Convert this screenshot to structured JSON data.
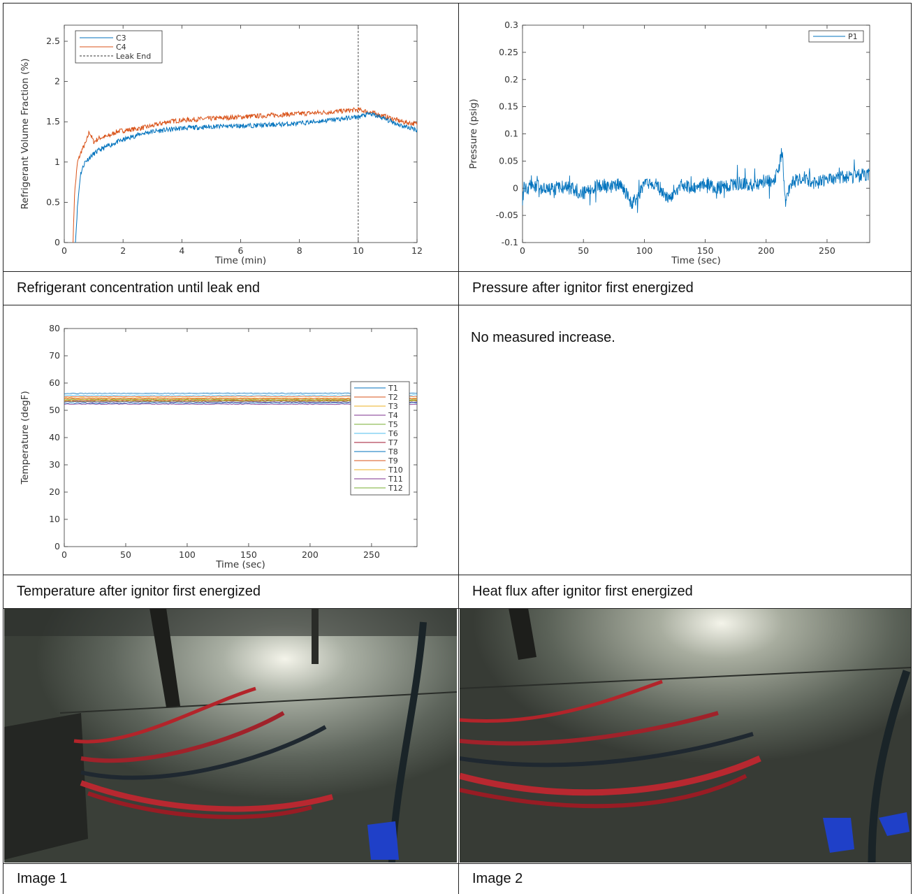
{
  "captions": {
    "c1": "Refrigerant concentration until leak end",
    "c2": "Pressure after ignitor first energized",
    "c3": "Temperature after ignitor first energized",
    "c4": "Heat flux after ignitor first energized",
    "c5": "Image 1",
    "c6": "Image 2"
  },
  "heat_flux_text": "No  measured increase.",
  "chart_data": [
    {
      "type": "line",
      "xlabel": "Time (min)",
      "ylabel": "Refrigerant Volume Fraction (%)",
      "xlim": [
        0,
        12
      ],
      "ylim": [
        0,
        2.7
      ],
      "xticks": [
        "0",
        "2",
        "4",
        "6",
        "8",
        "10",
        "12"
      ],
      "yticks": [
        "0",
        "0.5",
        "1",
        "1.5",
        "2",
        "2.5"
      ],
      "legend_position": "top-left",
      "colors": {
        "C3": "#0072bd",
        "C4": "#d95319",
        "Leak End": "#333333"
      },
      "series": [
        {
          "name": "C3",
          "x": [
            0.38,
            0.45,
            0.55,
            0.7,
            0.85,
            1.0,
            1.2,
            1.5,
            1.8,
            2.2,
            2.6,
            3.0,
            3.5,
            4,
            5,
            6,
            7,
            8,
            9,
            10,
            10.4,
            10.8,
            11.5,
            12
          ],
          "y": [
            0,
            0.45,
            0.85,
            1.0,
            1.05,
            1.1,
            1.15,
            1.2,
            1.25,
            1.3,
            1.35,
            1.38,
            1.4,
            1.42,
            1.44,
            1.45,
            1.46,
            1.48,
            1.52,
            1.56,
            1.6,
            1.55,
            1.45,
            1.4
          ]
        },
        {
          "name": "C4",
          "x": [
            0.3,
            0.35,
            0.45,
            0.6,
            0.75,
            0.85,
            1.0,
            1.2,
            1.5,
            1.8,
            2.2,
            2.6,
            3.0,
            3.5,
            4,
            5,
            6,
            7,
            8,
            9,
            10,
            10.4,
            10.8,
            11.5,
            12
          ],
          "y": [
            0,
            0.6,
            1.0,
            1.15,
            1.25,
            1.38,
            1.25,
            1.3,
            1.32,
            1.38,
            1.4,
            1.42,
            1.45,
            1.5,
            1.52,
            1.54,
            1.56,
            1.58,
            1.6,
            1.62,
            1.65,
            1.62,
            1.58,
            1.5,
            1.47
          ]
        },
        {
          "name": "Leak End",
          "x": [
            10,
            10
          ],
          "y": [
            0,
            2.7
          ]
        }
      ]
    },
    {
      "type": "line",
      "xlabel": "Time (sec)",
      "ylabel": "Pressure (psig)",
      "xlim": [
        0,
        285
      ],
      "ylim": [
        -0.1,
        0.3
      ],
      "xticks": [
        "0",
        "50",
        "100",
        "150",
        "200",
        "250"
      ],
      "yticks": [
        "-0.1",
        "-0.05",
        "0",
        "0.05",
        "0.1",
        "0.15",
        "0.2",
        "0.25",
        "0.3"
      ],
      "legend_position": "top-right",
      "colors": {
        "P1": "#0072bd"
      },
      "series": [
        {
          "name": "P1",
          "x": [
            0,
            10,
            20,
            30,
            40,
            50,
            60,
            70,
            80,
            90,
            100,
            110,
            120,
            130,
            140,
            150,
            160,
            170,
            180,
            190,
            200,
            205,
            210,
            213,
            216,
            220,
            230,
            240,
            250,
            260,
            270,
            280,
            285
          ],
          "y": [
            0,
            0.005,
            -0.005,
            0.002,
            0.0,
            -0.01,
            0.005,
            0.0,
            0.01,
            -0.03,
            0.005,
            0.01,
            -0.02,
            0.005,
            0.0,
            0.01,
            0.0,
            0.005,
            0.01,
            0.005,
            0.015,
            0.01,
            0.03,
            0.07,
            -0.03,
            0.01,
            0.02,
            0.01,
            0.015,
            0.02,
            0.02,
            0.025,
            0.025
          ]
        }
      ]
    },
    {
      "type": "line",
      "xlabel": "Time (sec)",
      "ylabel": "Temperature (degF)",
      "xlim": [
        0,
        287
      ],
      "ylim": [
        0,
        80
      ],
      "xticks": [
        "0",
        "50",
        "100",
        "150",
        "200",
        "250"
      ],
      "yticks": [
        "0",
        "10",
        "20",
        "30",
        "40",
        "50",
        "60",
        "70",
        "80"
      ],
      "legend_position": "right",
      "x": [
        0,
        287
      ],
      "series": [
        {
          "name": "T1",
          "values": [
            56.2,
            56.3
          ],
          "color": "#0072bd"
        },
        {
          "name": "T2",
          "values": [
            55.0,
            55.1
          ],
          "color": "#d95319"
        },
        {
          "name": "T3",
          "values": [
            54.6,
            54.4
          ],
          "color": "#edb120"
        },
        {
          "name": "T4",
          "values": [
            53.1,
            53.0
          ],
          "color": "#7e2f8e"
        },
        {
          "name": "T5",
          "values": [
            54.0,
            53.9
          ],
          "color": "#77ac30"
        },
        {
          "name": "T6",
          "values": [
            55.5,
            55.6
          ],
          "color": "#4dbeee"
        },
        {
          "name": "T7",
          "values": [
            53.6,
            53.5
          ],
          "color": "#a2142f"
        },
        {
          "name": "T8",
          "values": [
            52.6,
            52.7
          ],
          "color": "#0072bd"
        },
        {
          "name": "T9",
          "values": [
            54.3,
            54.2
          ],
          "color": "#d95319"
        },
        {
          "name": "T10",
          "values": [
            53.8,
            53.7
          ],
          "color": "#edb120"
        },
        {
          "name": "T11",
          "values": [
            52.3,
            52.2
          ],
          "color": "#7e2f8e"
        },
        {
          "name": "T12",
          "values": [
            53.3,
            53.4
          ],
          "color": "#77ac30"
        }
      ]
    }
  ]
}
